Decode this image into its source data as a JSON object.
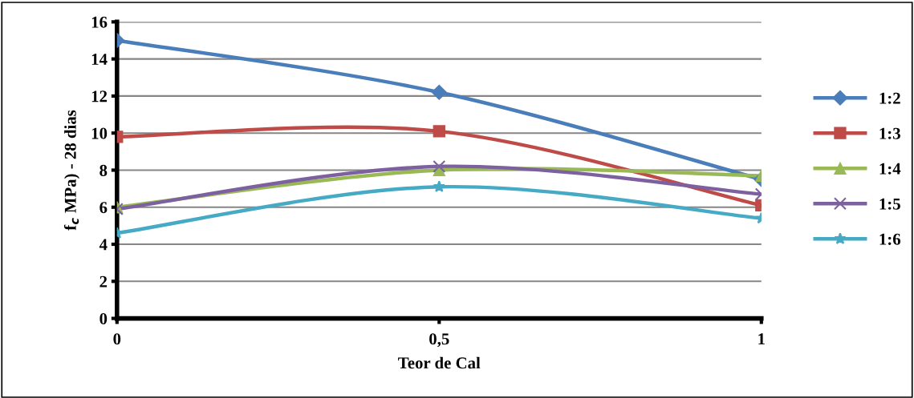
{
  "chart_data": {
    "type": "line",
    "xlabel": "Teor de Cal",
    "ylabel": "f$_{c}$ MPa) - 28 dias",
    "x": [
      0,
      0.5,
      1
    ],
    "xlim": [
      0,
      1
    ],
    "xticks": [
      0,
      {
        "value": 0.5,
        "label": "0,5"
      },
      1
    ],
    "ylim": [
      0,
      16
    ],
    "yticks": [
      0,
      2,
      4,
      6,
      8,
      10,
      12,
      14,
      16
    ],
    "grid": "y",
    "legend": "right",
    "line_style": "solid",
    "series": [
      {
        "name": "1:2",
        "color": "#4a7ebb",
        "marker": "diamond",
        "values": [
          15,
          12.2,
          7.5
        ]
      },
      {
        "name": "1:3",
        "color": "#be4b48",
        "marker": "square",
        "values": [
          9.8,
          10.1,
          6.1
        ]
      },
      {
        "name": "1:4",
        "color": "#98b954",
        "marker": "triangle",
        "values": [
          6.0,
          8.0,
          7.7
        ]
      },
      {
        "name": "1:5",
        "color": "#7d60a0",
        "marker": "cross",
        "values": [
          5.9,
          8.2,
          6.7
        ]
      },
      {
        "name": "1:6",
        "color": "#46aac5",
        "marker": "star",
        "values": [
          4.6,
          7.1,
          5.4
        ]
      }
    ]
  }
}
